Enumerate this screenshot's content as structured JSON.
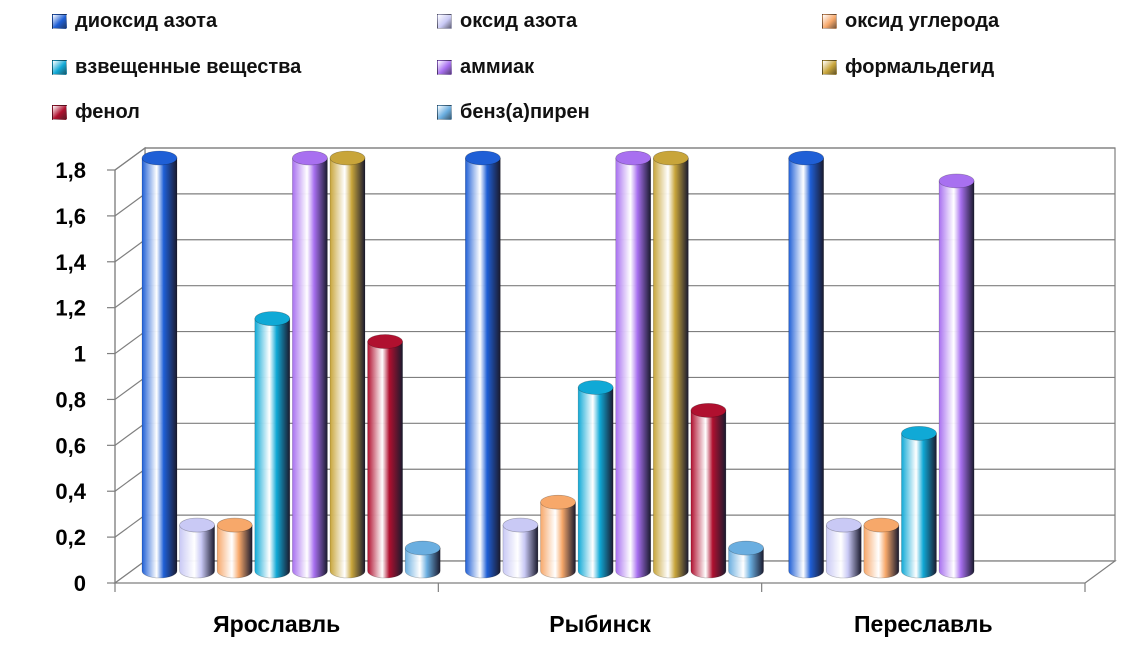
{
  "chart_data": {
    "type": "bar",
    "categories": [
      "Ярославль",
      "Рыбинск",
      "Переславль"
    ],
    "series": [
      {
        "name": "диоксид азота",
        "values": [
          1.8,
          1.8,
          1.8
        ],
        "color": "#1f5fd6"
      },
      {
        "name": "оксид азота",
        "values": [
          0.2,
          0.2,
          0.2
        ],
        "color": "#c9c9f5"
      },
      {
        "name": "оксид углерода",
        "values": [
          0.2,
          0.3,
          0.2
        ],
        "color": "#f7a86a"
      },
      {
        "name": "взвещенные вещества",
        "values": [
          1.1,
          0.8,
          0.6
        ],
        "color": "#10a9d6"
      },
      {
        "name": "аммиак",
        "values": [
          1.8,
          1.8,
          1.7
        ],
        "color": "#a870f0"
      },
      {
        "name": "формальдегид",
        "values": [
          1.8,
          1.8,
          null
        ],
        "color": "#c8a53a"
      },
      {
        "name": "фенол",
        "values": [
          1.0,
          0.7,
          null
        ],
        "color": "#b0102f"
      },
      {
        "name": "бенз(а)пирен",
        "values": [
          0.1,
          0.1,
          null
        ],
        "color": "#6aaee0"
      }
    ],
    "yticks": [
      "0",
      "0,2",
      "0,4",
      "0,6",
      "0,8",
      "1",
      "1,2",
      "1,4",
      "1,6",
      "1,8"
    ],
    "ylim": [
      0,
      1.8
    ],
    "grid": true,
    "legend_position": "top"
  }
}
